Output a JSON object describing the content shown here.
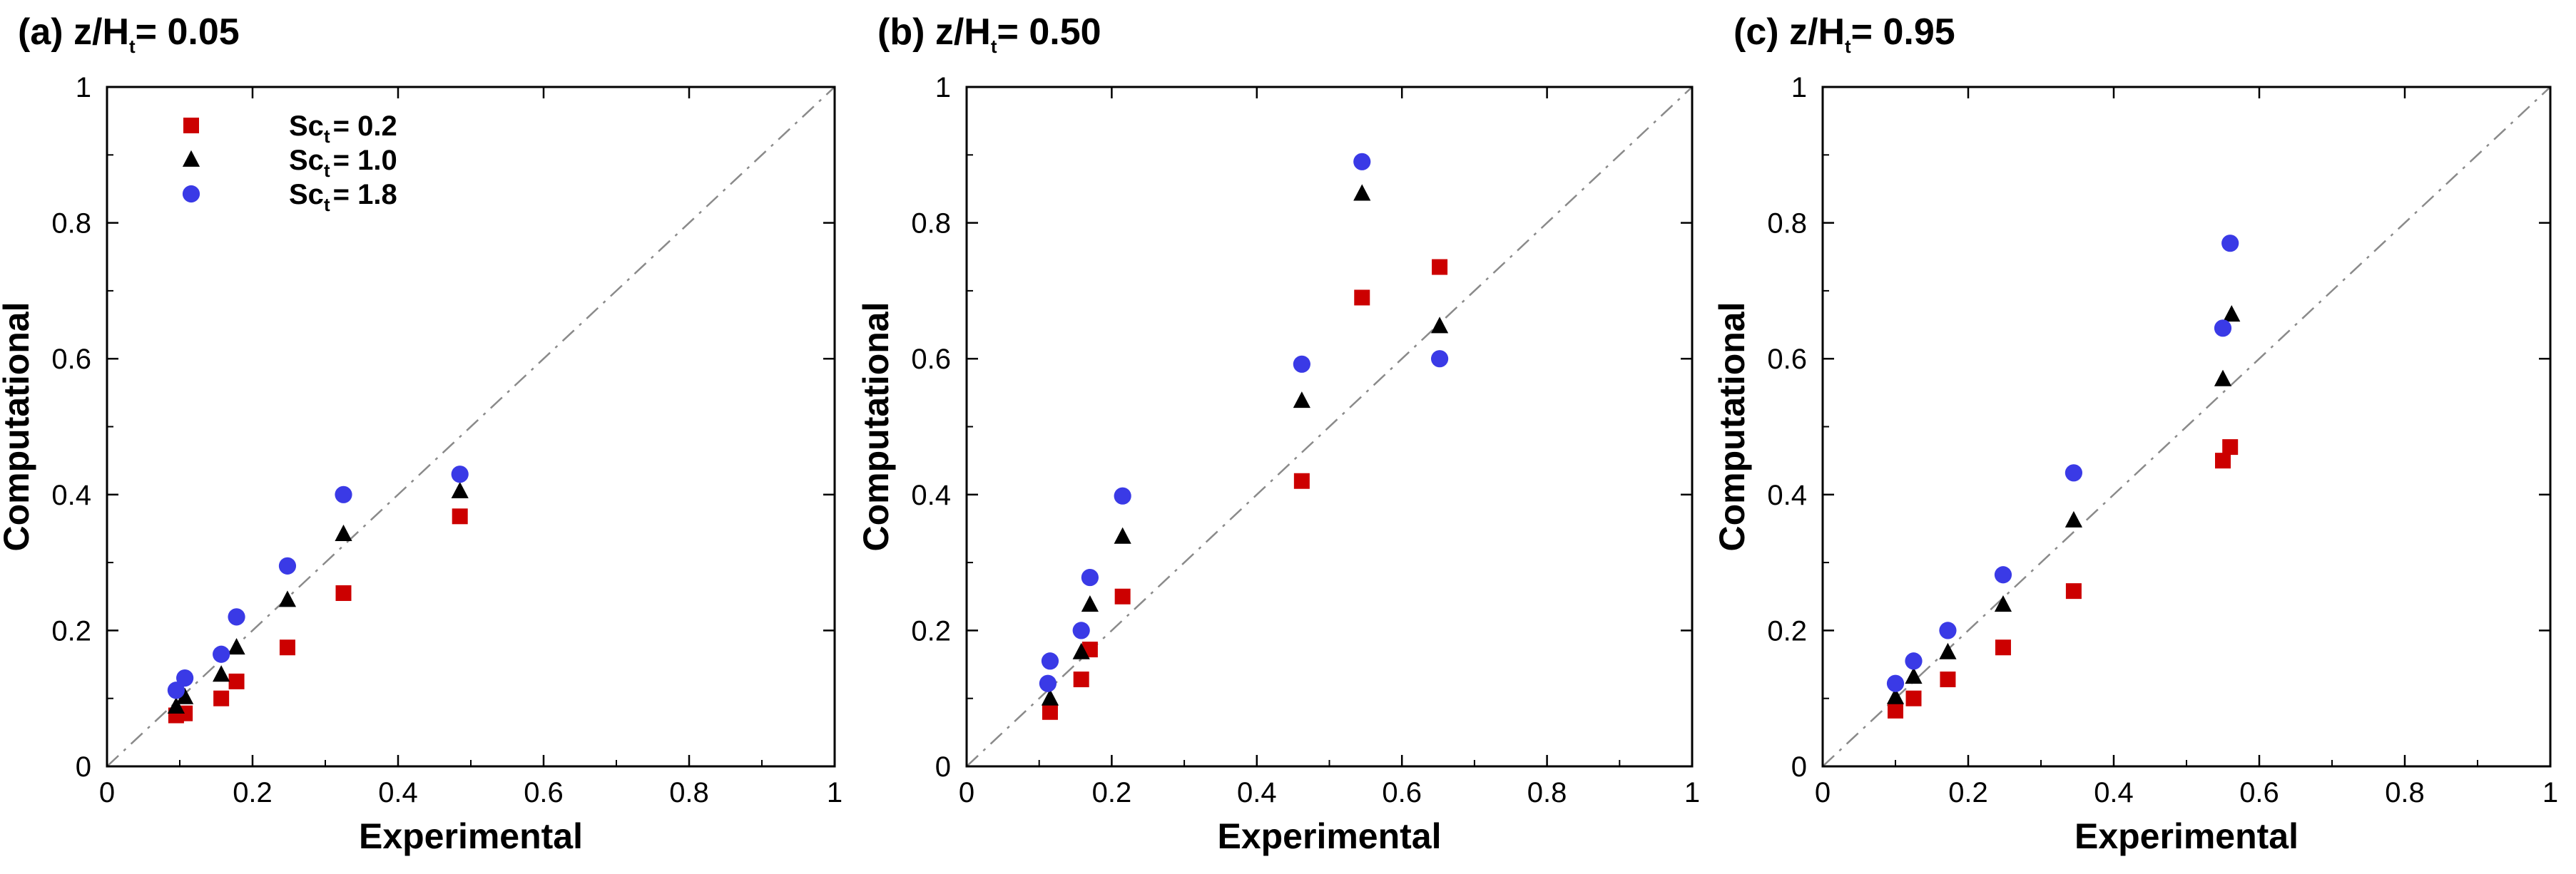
{
  "chart_data": [
    {
      "type": "scatter",
      "title": "(a) z/H",
      "title_subscript": "t",
      "title_suffix": "= 0.05",
      "xlabel": "Experimental",
      "ylabel": "Computational",
      "xlim": [
        0,
        1
      ],
      "ylim": [
        0,
        1
      ],
      "xticks": [
        "0",
        "0.2",
        "0.4",
        "0.6",
        "0.8",
        "1"
      ],
      "yticks": [
        "0",
        "0.2",
        "0.4",
        "0.6",
        "0.8",
        "1"
      ],
      "reference_line": "y = x (dash-dot)",
      "series": [
        {
          "name": "Sc = 0.2",
          "marker": "square",
          "color": "#cc0000",
          "x": [
            0.095,
            0.107,
            0.157,
            0.178,
            0.248,
            0.325,
            0.485
          ],
          "y": [
            0.075,
            0.078,
            0.1,
            0.125,
            0.175,
            0.255,
            0.368
          ]
        },
        {
          "name": "Sc = 1.0",
          "marker": "triangle",
          "color": "#000000",
          "x": [
            0.095,
            0.107,
            0.157,
            0.178,
            0.248,
            0.325,
            0.485
          ],
          "y": [
            0.088,
            0.102,
            0.135,
            0.175,
            0.245,
            0.342,
            0.405
          ]
        },
        {
          "name": "Sc = 1.8",
          "marker": "circle",
          "color": "#3a3ae6",
          "x": [
            0.095,
            0.107,
            0.157,
            0.178,
            0.248,
            0.325,
            0.485
          ],
          "y": [
            0.112,
            0.13,
            0.165,
            0.22,
            0.295,
            0.4,
            0.43
          ]
        }
      ],
      "legend": {
        "placement": "top-left",
        "entries": [
          {
            "prefix": "Sc",
            "sub": "t",
            "value": "= 0.2",
            "marker": "square",
            "color": "#cc0000"
          },
          {
            "prefix": "Sc",
            "sub": "t",
            "value": "= 1.0",
            "marker": "triangle",
            "color": "#000000"
          },
          {
            "prefix": "Sc",
            "sub": "t",
            "value": "= 1.8",
            "marker": "circle",
            "color": "#3a3ae6"
          }
        ]
      }
    },
    {
      "type": "scatter",
      "title": "(b) z/H",
      "title_subscript": "t",
      "title_suffix": "= 0.50",
      "xlabel": "Experimental",
      "ylabel": "Computational",
      "xlim": [
        0,
        1
      ],
      "ylim": [
        0,
        1
      ],
      "xticks": [
        "0",
        "0.2",
        "0.4",
        "0.6",
        "0.8",
        "1"
      ],
      "yticks": [
        "0",
        "0.2",
        "0.4",
        "0.6",
        "0.8",
        "1"
      ],
      "reference_line": "y = x (dash-dot)",
      "series": [
        {
          "name": "Sc = 0.2",
          "marker": "square",
          "color": "#cc0000",
          "x": [
            0.115,
            0.158,
            0.17,
            0.215,
            0.462,
            0.545,
            0.652
          ],
          "y": [
            0.08,
            0.128,
            0.172,
            0.25,
            0.42,
            0.69,
            0.735
          ]
        },
        {
          "name": "Sc = 1.0",
          "marker": "triangle",
          "color": "#000000",
          "x": [
            0.115,
            0.158,
            0.17,
            0.215,
            0.462,
            0.545,
            0.652
          ],
          "y": [
            0.1,
            0.168,
            0.238,
            0.338,
            0.538,
            0.843,
            0.648
          ]
        },
        {
          "name": "Sc = 1.8",
          "marker": "circle",
          "color": "#3a3ae6",
          "x": [
            0.112,
            0.115,
            0.158,
            0.17,
            0.215,
            0.462,
            0.545,
            0.652
          ],
          "y": [
            0.122,
            0.155,
            0.2,
            0.278,
            0.398,
            0.592,
            0.89,
            0.6
          ]
        }
      ]
    },
    {
      "type": "scatter",
      "title": "(c) z/H",
      "title_subscript": "t",
      "title_suffix": "= 0.95",
      "xlabel": "Experimental",
      "ylabel": "Computational",
      "xlim": [
        0,
        1
      ],
      "ylim": [
        0,
        1
      ],
      "xticks": [
        "0",
        "0.2",
        "0.4",
        "0.6",
        "0.8",
        "1"
      ],
      "yticks": [
        "0",
        "0.2",
        "0.4",
        "0.6",
        "0.8",
        "1"
      ],
      "reference_line": "y = x (dash-dot)",
      "series": [
        {
          "name": "Sc = 0.2",
          "marker": "square",
          "color": "#cc0000",
          "x": [
            0.1,
            0.125,
            0.172,
            0.248,
            0.345,
            0.55,
            0.56
          ],
          "y": [
            0.082,
            0.1,
            0.128,
            0.175,
            0.258,
            0.45,
            0.47
          ]
        },
        {
          "name": "Sc = 1.0",
          "marker": "triangle",
          "color": "#000000",
          "x": [
            0.1,
            0.125,
            0.172,
            0.248,
            0.345,
            0.55,
            0.562
          ],
          "y": [
            0.102,
            0.132,
            0.168,
            0.238,
            0.362,
            0.57,
            0.665
          ]
        },
        {
          "name": "Sc = 1.8",
          "marker": "circle",
          "color": "#3a3ae6",
          "x": [
            0.1,
            0.125,
            0.172,
            0.248,
            0.345,
            0.55,
            0.56
          ],
          "y": [
            0.122,
            0.155,
            0.2,
            0.282,
            0.432,
            0.645,
            0.77
          ]
        }
      ]
    }
  ]
}
